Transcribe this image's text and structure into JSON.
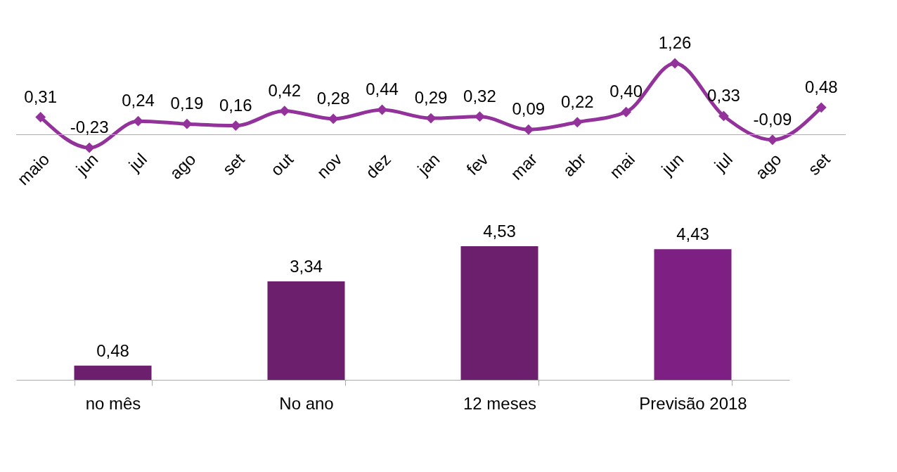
{
  "chart_data": [
    {
      "type": "line",
      "categories": [
        "maio",
        "jun",
        "jul",
        "ago",
        "set",
        "out",
        "nov",
        "dez",
        "jan",
        "fev",
        "mar",
        "abr",
        "mai",
        "jun",
        "jul",
        "ago",
        "set"
      ],
      "series": [
        {
          "color": "#93329b",
          "values": [
            0.31,
            -0.23,
            0.24,
            0.19,
            0.16,
            0.42,
            0.28,
            0.44,
            0.29,
            0.32,
            0.09,
            0.22,
            0.4,
            1.26,
            0.33,
            -0.09,
            0.48
          ],
          "value_labels": [
            "0,31",
            "-0,23",
            "0,24",
            "0,19",
            "0,16",
            "0,42",
            "0,28",
            "0,44",
            "0,29",
            "0,32",
            "0,09",
            "0,22",
            "0,40",
            "1,26",
            "0,33",
            "-0,09",
            "0,48"
          ]
        }
      ],
      "marker": "diamond",
      "line_style": "solid",
      "grid": false,
      "tick_labels": "x"
    },
    {
      "type": "bar",
      "categories": [
        "no mês",
        "No ano",
        "12 meses",
        "Previsão 2018"
      ],
      "values": [
        0.48,
        3.34,
        4.53,
        4.43
      ],
      "value_labels": [
        "0,48",
        "3,34",
        "4,53",
        "4,43"
      ],
      "colors": [
        "#6c1f6c",
        "#6c1f6c",
        "#6c1f6c",
        "#7e1f84"
      ],
      "grid": false,
      "tick_labels": "x"
    }
  ]
}
